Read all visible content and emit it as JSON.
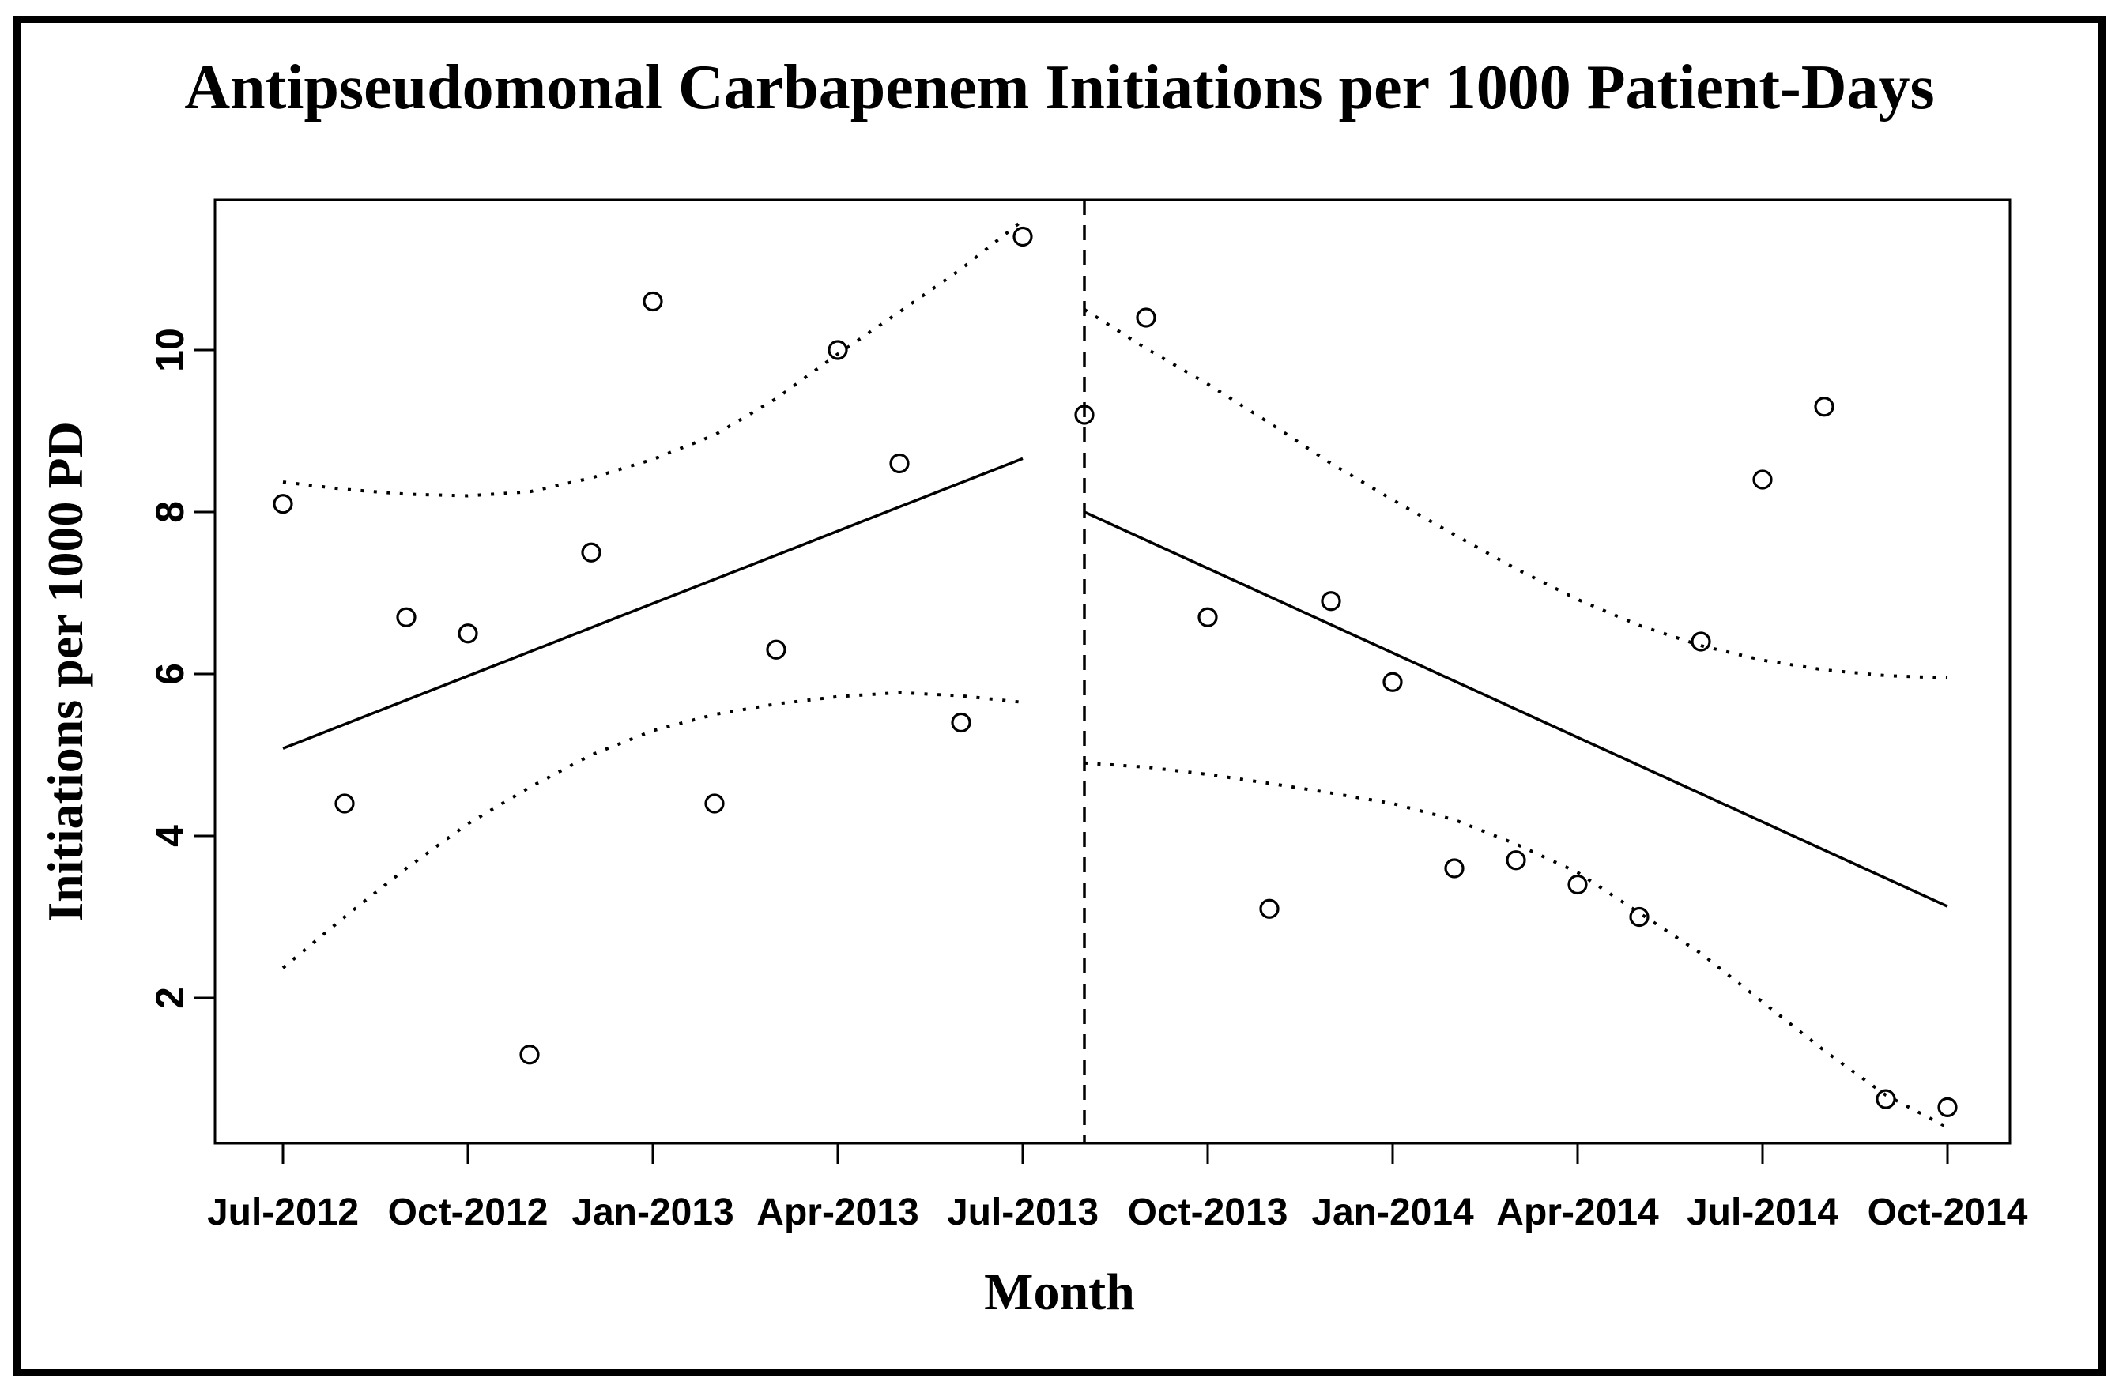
{
  "page": {
    "background_color": "#ffffff",
    "ink_color": "#000000"
  },
  "chart_data": {
    "type": "scatter",
    "title": "Antipseudomonal Carbapenem Initiations per 1000 Patient-Days",
    "xlabel": "Month",
    "ylabel": "Initiations per 1000 PD",
    "grid": false,
    "legend_position": "none",
    "marker": "open-circle",
    "y_ticks": [
      2,
      4,
      6,
      8,
      10
    ],
    "ylim": [
      0.2,
      11.85
    ],
    "x_tick_labels": [
      "Jul-2012",
      "Oct-2012",
      "Jan-2013",
      "Apr-2013",
      "Jul-2013",
      "Oct-2013",
      "Jan-2014",
      "Apr-2014",
      "Jul-2014",
      "Oct-2014"
    ],
    "months": [
      "Jul-2012",
      "Aug-2012",
      "Sep-2012",
      "Oct-2012",
      "Nov-2012",
      "Dec-2012",
      "Jan-2013",
      "Feb-2013",
      "Mar-2013",
      "Apr-2013",
      "May-2013",
      "Jun-2013",
      "Jul-2013",
      "Aug-2013",
      "Sep-2013",
      "Oct-2013",
      "Nov-2013",
      "Dec-2013",
      "Jan-2014",
      "Feb-2014",
      "Mar-2014",
      "Apr-2014",
      "May-2014",
      "Jun-2014",
      "Jul-2014",
      "Aug-2014",
      "Sep-2014",
      "Oct-2014"
    ],
    "series": [
      {
        "name": "monthly-initiations-per-1000-pd",
        "values": [
          8.1,
          4.4,
          6.7,
          6.5,
          1.3,
          7.5,
          10.6,
          4.4,
          6.3,
          10.0,
          8.6,
          5.4,
          11.4,
          9.2,
          10.4,
          6.7,
          3.1,
          6.9,
          5.9,
          3.6,
          3.7,
          3.4,
          3.0,
          6.4,
          8.4,
          9.3,
          0.75,
          0.65
        ]
      }
    ],
    "intervention_month": "Aug-2013",
    "trend_segments": [
      {
        "name": "pre-intervention-trend",
        "style": "solid",
        "from_month": "Jul-2012",
        "from_value": 5.08,
        "to_month": "Jul-2013",
        "to_value": 8.66
      },
      {
        "name": "post-intervention-trend",
        "style": "solid",
        "from_month": "Aug-2013",
        "from_value": 8.0,
        "to_month": "Oct-2014",
        "to_value": 3.13
      }
    ],
    "confidence_bands": [
      {
        "name": "pre-upper-ci",
        "style": "dotted",
        "start_month": "Jul-2012",
        "values": [
          8.37,
          8.28,
          8.22,
          8.2,
          8.25,
          8.42,
          8.65,
          8.95,
          9.4,
          9.95,
          10.47,
          11.0,
          11.6
        ]
      },
      {
        "name": "pre-lower-ci",
        "style": "dotted",
        "start_month": "Jul-2012",
        "values": [
          2.37,
          3.0,
          3.6,
          4.15,
          4.6,
          5.0,
          5.3,
          5.5,
          5.63,
          5.72,
          5.77,
          5.73,
          5.65
        ]
      },
      {
        "name": "post-upper-ci",
        "style": "dotted",
        "start_month": "Aug-2013",
        "values": [
          10.5,
          10.02,
          9.58,
          9.1,
          8.6,
          8.15,
          7.72,
          7.3,
          6.92,
          6.6,
          6.35,
          6.17,
          6.05,
          5.98,
          5.95
        ]
      },
      {
        "name": "post-lower-ci",
        "style": "dotted",
        "start_month": "Aug-2013",
        "values": [
          4.9,
          4.85,
          4.76,
          4.65,
          4.53,
          4.4,
          4.2,
          3.9,
          3.55,
          3.05,
          2.55,
          1.95,
          1.35,
          0.8,
          0.4
        ]
      }
    ]
  }
}
